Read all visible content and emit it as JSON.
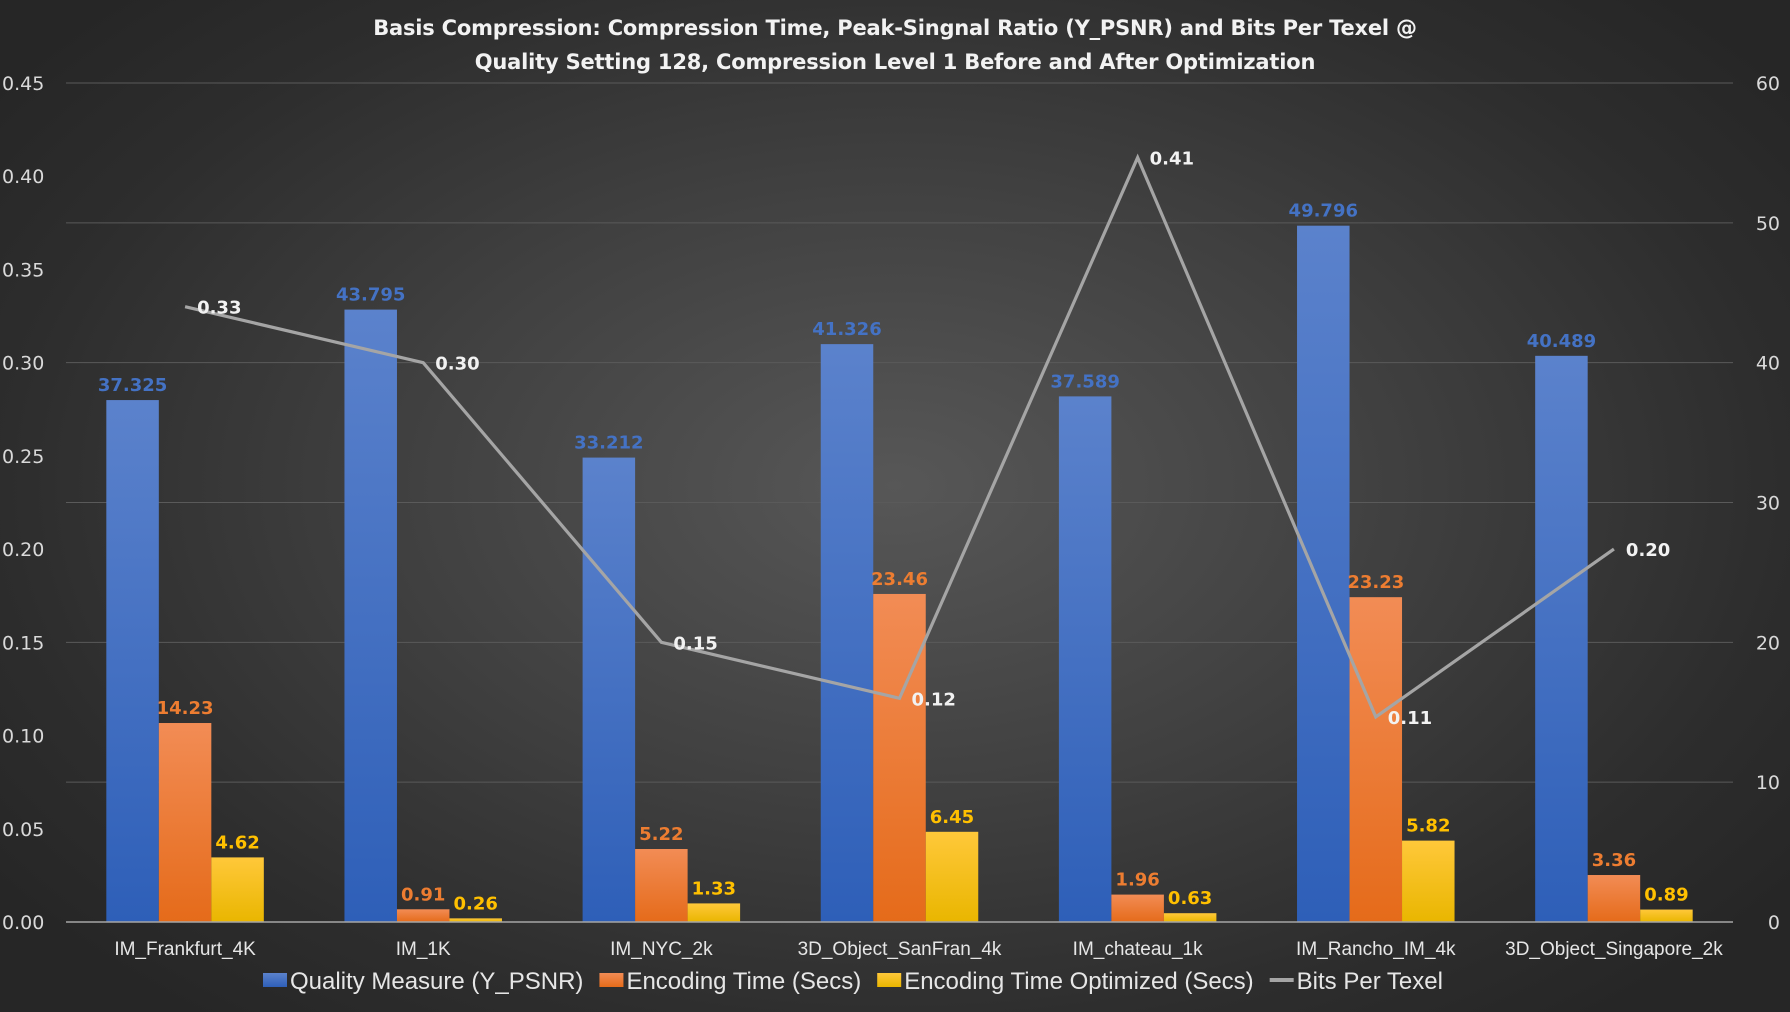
{
  "chart_data": {
    "type": "bar",
    "title": "Basis Compression: Compression Time, Peak-Singnal Ratio (Y_PSNR) and Bits Per Texel @ Quality Setting 128, Compression Level 1 Before and After Optimization",
    "title_lines": [
      "Basis Compression: Compression Time, Peak-Singnal Ratio (Y_PSNR) and Bits Per Texel @",
      "Quality Setting 128, Compression Level 1 Before and After Optimization"
    ],
    "categories": [
      "IM_Frankfurt_4K",
      "IM_1K",
      "IM_NYC_2k",
      "3D_Object_SanFran_4k",
      "IM_chateau_1k",
      "IM_Rancho_IM_4k",
      "3D_Object_Singapore_2k"
    ],
    "series": [
      {
        "name": "Quality Measure (Y_PSNR)",
        "type": "bar",
        "axis": "right",
        "color": "#4472c4",
        "label_color": "#4472c4",
        "values": [
          37.325,
          43.795,
          33.212,
          41.326,
          37.589,
          49.796,
          40.489
        ],
        "labels": [
          "37.325",
          "43.795",
          "33.212",
          "41.326",
          "37.589",
          "49.796",
          "40.489"
        ]
      },
      {
        "name": "Encoding Time (Secs)",
        "type": "bar",
        "axis": "right",
        "color": "#ed7d31",
        "label_color": "#ed7d31",
        "values": [
          14.23,
          0.91,
          5.22,
          23.46,
          1.96,
          23.23,
          3.36
        ],
        "labels": [
          "14.23",
          "0.91",
          "5.22",
          "23.46",
          "1.96",
          "23.23",
          "3.36"
        ]
      },
      {
        "name": "Encoding Time Optimized (Secs)",
        "type": "bar",
        "axis": "right",
        "color": "#ffc000",
        "label_color": "#ffc000",
        "values": [
          4.62,
          0.26,
          1.33,
          6.45,
          0.63,
          5.82,
          0.89
        ],
        "labels": [
          "4.62",
          "0.26",
          "1.33",
          "6.45",
          "0.63",
          "5.82",
          "0.89"
        ]
      },
      {
        "name": "Bits Per Texel",
        "type": "line",
        "axis": "left",
        "color": "#a5a5a5",
        "label_color": "#f2f2f2",
        "values": [
          0.33,
          0.3,
          0.15,
          0.12,
          0.41,
          0.11,
          0.2
        ],
        "labels": [
          "0.33",
          "0.30",
          "0.15",
          "0.12",
          "0.41",
          "0.11",
          "0.20"
        ]
      }
    ],
    "left_axis": {
      "ylim": [
        0,
        0.45
      ],
      "ticks": [
        "0.00",
        "0.05",
        "0.10",
        "0.15",
        "0.20",
        "0.25",
        "0.30",
        "0.35",
        "0.40",
        "0.45"
      ],
      "tick_values": [
        0,
        0.05,
        0.1,
        0.15,
        0.2,
        0.25,
        0.3,
        0.35,
        0.4,
        0.45
      ]
    },
    "right_axis": {
      "ylim": [
        0,
        60
      ],
      "ticks": [
        "0",
        "10",
        "20",
        "30",
        "40",
        "50",
        "60"
      ],
      "tick_values": [
        0,
        10,
        20,
        30,
        40,
        50,
        60
      ]
    },
    "xlabel": "",
    "ylabel": "",
    "grid": true,
    "gridlines_follow": "right-axis",
    "legend_position": "bottom",
    "background": "dark-radial-gradient"
  }
}
